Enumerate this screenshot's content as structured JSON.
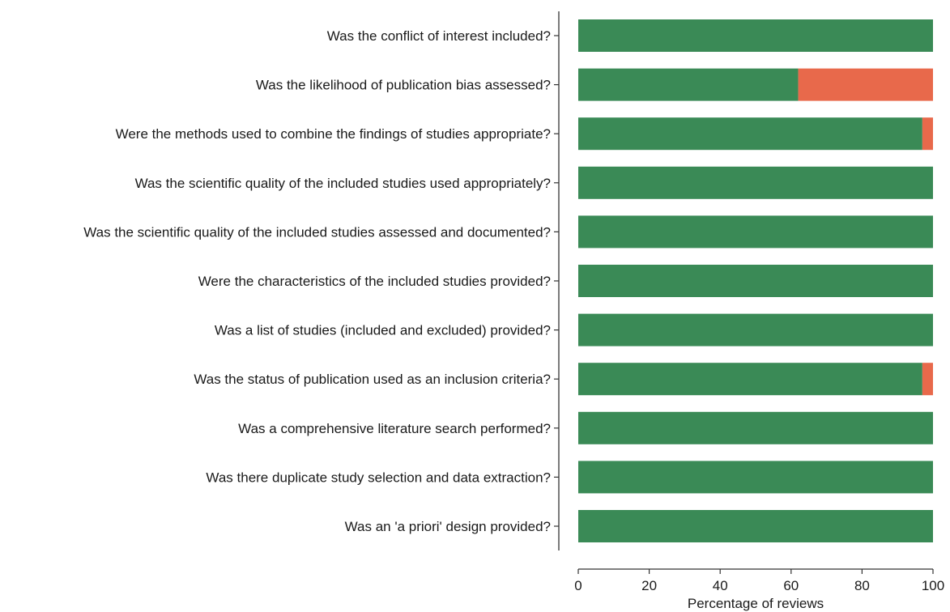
{
  "chart_data": {
    "type": "bar",
    "orientation": "horizontal",
    "stacked": true,
    "categories": [
      "Was the conflict of interest included?",
      "Was the likelihood of publication bias assessed?",
      "Were the methods used to combine the findings of studies appropriate?",
      "Was the scientific quality of the included studies used appropriately?",
      "Was the scientific quality of the included studies assessed and documented?",
      "Were the characteristics of the included studies provided?",
      "Was a list of studies (included and excluded) provided? ",
      "Was the status of publication used as an inclusion criteria?",
      "Was a comprehensive literature search performed?",
      "Was there duplicate study selection and data extraction?",
      "Was an 'a priori' design provided?"
    ],
    "series": [
      {
        "values": [
          100,
          62,
          97,
          100,
          100,
          100,
          100,
          97,
          100,
          100,
          100
        ],
        "color": "#3a8a56"
      },
      {
        "values": [
          0,
          38,
          3,
          0,
          0,
          0,
          0,
          3,
          0,
          0,
          0
        ],
        "color": "#e8694b"
      }
    ],
    "xlabel": "Percentage of reviews",
    "xlim": [
      0,
      100
    ],
    "xticks": [
      0,
      20,
      40,
      60,
      80,
      100
    ],
    "grid": false,
    "legend": "none"
  }
}
